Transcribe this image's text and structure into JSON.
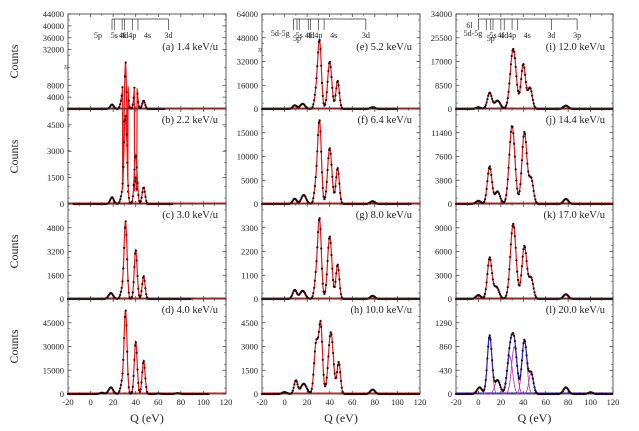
{
  "chart_data": {
    "type": "line",
    "title": "",
    "layout": "4 rows x 3 columns",
    "xlabel": "Q (eV)",
    "ylabel": "Counts",
    "xlim": [
      -20,
      120
    ],
    "xticks": [
      -20,
      0,
      20,
      40,
      60,
      80,
      100,
      120
    ],
    "colors": {
      "data_points": "#2a0a0a",
      "fit_red": "#e01818",
      "fit_blue": "#2020c8",
      "components": "#b030b0",
      "axis": "#333333"
    },
    "shell_labels": [
      {
        "panel": "a",
        "labels": [
          {
            "text": "5p",
            "q": 19
          },
          {
            "text": "5s",
            "q": 21
          },
          {
            "text": "4f",
            "q": 28
          },
          {
            "text": "4d",
            "q": 30
          },
          {
            "text": "4p",
            "q": 37
          },
          {
            "text": "4s",
            "q": 42
          },
          {
            "text": "3d",
            "q": 69
          }
        ]
      },
      {
        "panel": "e",
        "labels": [
          {
            "text": "5d-5g",
            "q": 8
          },
          {
            "text": "5p",
            "q": 11
          },
          {
            "text": "5s",
            "q": 13
          },
          {
            "text": "4f",
            "q": 21
          },
          {
            "text": "4d",
            "q": 23
          },
          {
            "text": "4p",
            "q": 30
          },
          {
            "text": "4s",
            "q": 35
          },
          {
            "text": "3d",
            "q": 72
          }
        ]
      },
      {
        "panel": "i",
        "labels": [
          {
            "text": "6l",
            "q": 0
          },
          {
            "text": "5d-5g",
            "q": 7
          },
          {
            "text": "5p",
            "q": 11
          },
          {
            "text": "5s",
            "q": 13
          },
          {
            "text": "4f",
            "q": 20
          },
          {
            "text": "4d",
            "q": 23
          },
          {
            "text": "4p",
            "q": 30
          },
          {
            "text": "4s",
            "q": 35
          },
          {
            "text": "3d",
            "q": 65
          },
          {
            "text": "3p",
            "q": 88
          }
        ]
      }
    ],
    "panels": [
      {
        "id": "a",
        "label": "(a) 1.4 keV/u",
        "ylim": [
          0,
          44000
        ],
        "yticks": [
          "0",
          "4000",
          "8000",
          "32000",
          "36000",
          "40000",
          "44000"
        ],
        "broken_axis": true,
        "x_extent": [
          -20,
          66
        ],
        "peaks": [
          [
            19,
            1500,
            1.6
          ],
          [
            28,
            3500,
            1.4
          ],
          [
            31,
            34000,
            1.3
          ],
          [
            40,
            11000,
            1.3
          ],
          [
            47,
            2800,
            1.3
          ]
        ]
      },
      {
        "id": "b",
        "label": "(b) 2.2 keV/u",
        "ylim": [
          0,
          5400
        ],
        "yticks": [
          "0",
          "1500",
          "3000",
          "4500"
        ],
        "x_extent": [
          -15,
          73
        ],
        "peaks": [
          [
            19,
            380,
            1.6
          ],
          [
            28,
            500,
            1.5
          ],
          [
            31,
            5000,
            1.3
          ],
          [
            40,
            2800,
            1.3
          ],
          [
            47,
            950,
            1.3
          ]
        ]
      },
      {
        "id": "c",
        "label": "(c) 3.0 keV/u",
        "ylim": [
          0,
          6400
        ],
        "yticks": [
          "0",
          "1600",
          "3200",
          "4800"
        ],
        "x_extent": [
          -20,
          89
        ],
        "peaks": [
          [
            18,
            400,
            2.0
          ],
          [
            28,
            600,
            1.4
          ],
          [
            31,
            5200,
            1.3
          ],
          [
            40,
            3300,
            1.3
          ],
          [
            47,
            1550,
            1.3
          ]
        ]
      },
      {
        "id": "d",
        "label": "(d) 4.0 keV/u",
        "ylim": [
          0,
          60000
        ],
        "yticks": [
          "0",
          "15000",
          "30000",
          "45000"
        ],
        "x_extent": [
          -20,
          105
        ],
        "peaks": [
          [
            10,
            800,
            1.8
          ],
          [
            18,
            4200,
            2.0
          ],
          [
            28,
            7000,
            1.5
          ],
          [
            31,
            52000,
            1.3
          ],
          [
            40,
            33000,
            1.3
          ],
          [
            47,
            21000,
            1.3
          ],
          [
            60,
            300,
            2
          ],
          [
            77,
            500,
            2
          ]
        ]
      },
      {
        "id": "e",
        "label": "(e) 5.2 keV/u",
        "ylim": [
          0,
          64000
        ],
        "yticks": [
          "0",
          "16000",
          "32000",
          "48000",
          "64000"
        ],
        "broken_axis": true,
        "x_extent": [
          -20,
          100
        ],
        "peaks": [
          [
            9,
            2500,
            1.8
          ],
          [
            16,
            3500,
            2.2
          ],
          [
            28,
            10000,
            1.6
          ],
          [
            31,
            45000,
            1.6
          ],
          [
            40,
            32000,
            1.8
          ],
          [
            47,
            19000,
            1.5
          ],
          [
            78,
            1200,
            2
          ]
        ]
      },
      {
        "id": "f",
        "label": "(f) 6.4 keV/u",
        "ylim": [
          0,
          20000
        ],
        "yticks": [
          "0",
          "5000",
          "10000",
          "15000"
        ],
        "x_extent": [
          -20,
          112
        ],
        "peaks": [
          [
            9,
            1100,
            1.8
          ],
          [
            17,
            1900,
            2.2
          ],
          [
            28,
            4000,
            1.6
          ],
          [
            31,
            17000,
            1.6
          ],
          [
            40,
            11800,
            1.9
          ],
          [
            47,
            7600,
            1.5
          ],
          [
            78,
            600,
            2
          ]
        ]
      },
      {
        "id": "g",
        "label": "(g) 8.0 keV/u",
        "ylim": [
          0,
          4400
        ],
        "yticks": [
          "0",
          "1100",
          "2200",
          "3300"
        ],
        "x_extent": [
          -20,
          120
        ],
        "peaks": [
          [
            9,
            420,
            1.8
          ],
          [
            16,
            380,
            2.4
          ],
          [
            28,
            900,
            1.6
          ],
          [
            31,
            3600,
            1.6
          ],
          [
            40,
            2900,
            1.9
          ],
          [
            47,
            1600,
            1.5
          ],
          [
            78,
            150,
            2
          ]
        ]
      },
      {
        "id": "h",
        "label": "(h) 10.0 keV/u",
        "ylim": [
          0,
          6000
        ],
        "yticks": [
          "0",
          "1500",
          "3000",
          "4500"
        ],
        "x_extent": [
          -20,
          120
        ],
        "peaks": [
          [
            0,
            120,
            2
          ],
          [
            10,
            850,
            1.6
          ],
          [
            17,
            650,
            2.6
          ],
          [
            28,
            3200,
            1.8
          ],
          [
            32,
            4300,
            1.6
          ],
          [
            41,
            3900,
            2.2
          ],
          [
            48,
            2000,
            1.5
          ],
          [
            78,
            280,
            2
          ]
        ]
      },
      {
        "id": "i",
        "label": "(i) 12.0 keV/u",
        "ylim": [
          0,
          34000
        ],
        "yticks": [
          "0",
          "8500",
          "17000",
          "25500",
          "34000"
        ],
        "x_extent": [
          -20,
          120
        ],
        "peaks": [
          [
            0,
            600,
            2.2
          ],
          [
            10,
            5800,
            2.0
          ],
          [
            17,
            3000,
            2.5
          ],
          [
            31,
            21500,
            2.6
          ],
          [
            40,
            16000,
            2.0
          ],
          [
            46,
            7500,
            2.0
          ],
          [
            78,
            1200,
            2.2
          ]
        ]
      },
      {
        "id": "j",
        "label": "(j) 14.4 keV/u",
        "ylim": [
          0,
          15200
        ],
        "yticks": [
          "0",
          "3800",
          "7600",
          "11400"
        ],
        "x_extent": [
          -20,
          120
        ],
        "peaks": [
          [
            0,
            500,
            2.2
          ],
          [
            10,
            6000,
            2.0
          ],
          [
            17,
            2000,
            2.3
          ],
          [
            30,
            12500,
            2.5
          ],
          [
            41,
            11500,
            2.2
          ],
          [
            47,
            4000,
            2.0
          ],
          [
            78,
            800,
            2.2
          ]
        ]
      },
      {
        "id": "k",
        "label": "(k) 17.0 keV/u",
        "ylim": [
          0,
          12000
        ],
        "yticks": [
          "0",
          "3000",
          "6000",
          "9000"
        ],
        "x_extent": [
          -20,
          120
        ],
        "peaks": [
          [
            0,
            500,
            2.2
          ],
          [
            10,
            5200,
            2.0
          ],
          [
            16,
            1500,
            2.4
          ],
          [
            31,
            9500,
            2.5
          ],
          [
            41,
            6700,
            2.2
          ],
          [
            47,
            2600,
            2.0
          ],
          [
            78,
            600,
            2.2
          ]
        ]
      },
      {
        "id": "l",
        "label": "(l) 20.0 keV/u",
        "ylim": [
          0,
          1720
        ],
        "yticks": [
          "0",
          "430",
          "860",
          "1290"
        ],
        "fit_color": "blue",
        "components": true,
        "x_extent": [
          -20,
          120
        ],
        "peaks": [
          [
            1,
            120,
            2.2
          ],
          [
            10,
            1060,
            2.0
          ],
          [
            17,
            250,
            2.4
          ],
          [
            28,
            680,
            2.4
          ],
          [
            32,
            860,
            2.4
          ],
          [
            41,
            980,
            2.2
          ],
          [
            47,
            380,
            2.0
          ],
          [
            78,
            120,
            2.2
          ],
          [
            100,
            30,
            2
          ]
        ]
      }
    ]
  }
}
